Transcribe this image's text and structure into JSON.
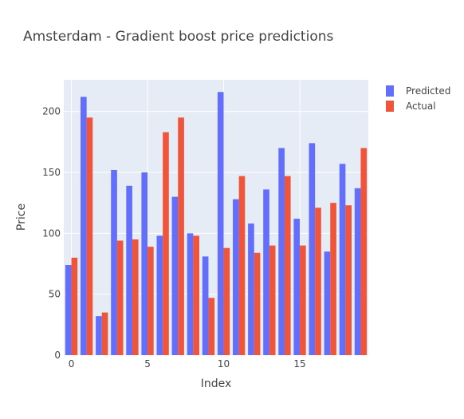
{
  "chart_data": {
    "type": "bar",
    "title": "Amsterdam - Gradient boost price predictions",
    "xlabel": "Index",
    "ylabel": "Price",
    "x": [
      0,
      1,
      2,
      3,
      4,
      5,
      6,
      7,
      8,
      9,
      10,
      11,
      12,
      13,
      14,
      15,
      16,
      17,
      18,
      19
    ],
    "x_ticks": [
      0,
      5,
      10,
      15
    ],
    "y_ticks": [
      0,
      50,
      100,
      150,
      200
    ],
    "xlim": [
      -0.5,
      19.5
    ],
    "ylim": [
      0,
      226
    ],
    "grid": true,
    "legend_position": "top-right",
    "series": [
      {
        "name": "Predicted",
        "color": "#636efa",
        "values": [
          74,
          212,
          32,
          152,
          139,
          150,
          98,
          130,
          100,
          81,
          216,
          128,
          108,
          136,
          170,
          112,
          174,
          85,
          157,
          137
        ]
      },
      {
        "name": "Actual",
        "color": "#ef553b",
        "values": [
          80,
          195,
          35,
          94,
          95,
          89,
          183,
          195,
          98,
          47,
          88,
          147,
          84,
          90,
          147,
          90,
          121,
          125,
          123,
          170
        ]
      }
    ],
    "plot_bgcolor": "#e5ecf6",
    "gridcolor": "#ffffff"
  }
}
